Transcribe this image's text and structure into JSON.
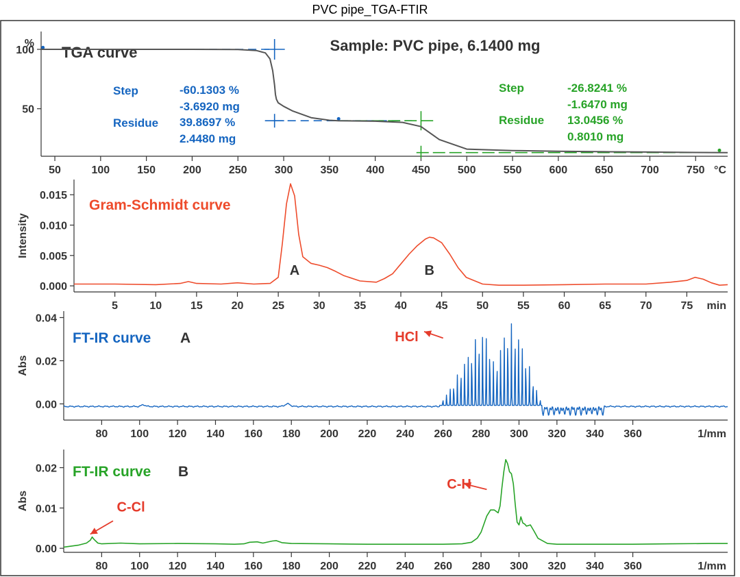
{
  "title": "PVC pipe_TGA-FTIR",
  "colors": {
    "tga": "#555555",
    "blue": "#1565c0",
    "green": "#27a327",
    "red": "#ee4b2b",
    "label": "#e53b2b",
    "text": "#333333"
  },
  "chart_data": [
    {
      "type": "line",
      "panel": "tga",
      "title": "TGA curve",
      "subtitle": "Sample: PVC pipe, 6.1400 mg",
      "ylabel": "%",
      "xunit": "°C",
      "xlim": [
        35,
        785
      ],
      "ylim": [
        10,
        115
      ],
      "xticks": [
        50,
        100,
        150,
        200,
        250,
        300,
        350,
        400,
        450,
        500,
        550,
        600,
        650,
        700,
        750
      ],
      "yticks": [
        50,
        100
      ],
      "series": [
        {
          "x": [
            35,
            100,
            200,
            250,
            270,
            280,
            285,
            288,
            290,
            291,
            292,
            294,
            300,
            310,
            330,
            350,
            360,
            400,
            430,
            450,
            470,
            500,
            550,
            600,
            650,
            700,
            750,
            785
          ],
          "y": [
            100,
            100,
            100,
            99.8,
            99,
            97,
            92,
            82,
            70,
            62,
            58,
            55,
            52,
            48,
            42.5,
            40.3,
            39.9,
            39.5,
            38.5,
            35,
            24,
            16,
            14.8,
            14.2,
            13.8,
            13.5,
            13.2,
            13.0
          ]
        }
      ],
      "steps": [
        {
          "step_label": "Step",
          "step_pct": "-60.1303 %",
          "step_mg": "-3.6920 mg",
          "residue_label": "Residue",
          "residue_pct": "39.8697 %",
          "residue_mg": "2.4480 mg"
        },
        {
          "step_label": "Step",
          "step_pct": "-26.8241 %",
          "step_mg": "-1.6470 mg",
          "residue_label": "Residue",
          "residue_pct": "13.0456 %",
          "residue_mg": "0.8010 mg"
        }
      ]
    },
    {
      "type": "line",
      "panel": "gram-schmidt",
      "title": "Gram-Schmidt curve",
      "ylabel": "Intensity",
      "xunit": "min",
      "xlim": [
        0,
        80
      ],
      "ylim": [
        -0.001,
        0.0175
      ],
      "xticks": [
        5,
        10,
        15,
        20,
        25,
        30,
        35,
        40,
        45,
        50,
        55,
        60,
        65,
        70,
        75
      ],
      "yticks": [
        0.0,
        0.005,
        0.01,
        0.015
      ],
      "ytick_labels": [
        "0.000",
        "0.005",
        "0.010",
        "0.015"
      ],
      "series": [
        {
          "x": [
            0,
            5,
            10,
            13,
            14,
            15,
            18,
            20,
            22,
            24,
            25,
            25.5,
            26,
            26.5,
            27,
            27.5,
            28,
            29,
            30,
            31,
            32,
            33,
            35,
            37,
            38,
            39,
            40,
            41,
            42,
            43,
            43.5,
            44,
            45,
            46,
            47,
            48,
            50,
            52,
            55,
            60,
            65,
            70,
            73,
            75,
            76,
            77,
            78,
            79,
            80
          ],
          "y": [
            0.0003,
            0.0003,
            0.0002,
            0.0004,
            0.0007,
            0.0004,
            0.0003,
            0.0005,
            0.0003,
            0.0004,
            0.0014,
            0.007,
            0.0135,
            0.0168,
            0.0148,
            0.0085,
            0.0048,
            0.0037,
            0.0034,
            0.003,
            0.0024,
            0.0017,
            0.0008,
            0.0006,
            0.0012,
            0.002,
            0.0036,
            0.0052,
            0.0066,
            0.0077,
            0.008,
            0.0079,
            0.0071,
            0.0052,
            0.003,
            0.0014,
            0.0003,
            0.0001,
            0.0001,
            0.0002,
            0.0003,
            0.0003,
            0.0006,
            0.0009,
            0.0014,
            0.0011,
            0.0005,
            0.0001,
            0.0002
          ]
        }
      ],
      "annotations": [
        {
          "text": "A",
          "x": 27
        },
        {
          "text": "B",
          "x": 43.5
        }
      ]
    },
    {
      "type": "line",
      "panel": "ftir-a",
      "title": "FT-IR curve",
      "title_suffix": "A",
      "ylabel": "Abs",
      "xunit": "1/mm",
      "xlim": [
        60,
        410
      ],
      "ylim": [
        -0.0075,
        0.043
      ],
      "xticks": [
        80,
        100,
        120,
        140,
        160,
        180,
        200,
        220,
        240,
        260,
        280,
        300,
        320,
        340,
        360
      ],
      "yticks": [
        0.0,
        0.02,
        0.04
      ],
      "ytick_labels": [
        "0.00",
        "0.02",
        "0.04"
      ],
      "baseline": -0.0012,
      "band_start": 258,
      "band_end": 312,
      "band_pitch": 1.9,
      "envelope": [
        {
          "x": 258,
          "y": 0.001
        },
        {
          "x": 262,
          "y": 0.006
        },
        {
          "x": 266,
          "y": 0.012
        },
        {
          "x": 270,
          "y": 0.019
        },
        {
          "x": 274,
          "y": 0.026
        },
        {
          "x": 277,
          "y": 0.031
        },
        {
          "x": 280,
          "y": 0.035
        },
        {
          "x": 283,
          "y": 0.034
        },
        {
          "x": 285,
          "y": 0.029
        },
        {
          "x": 287,
          "y": 0.018
        },
        {
          "x": 289,
          "y": 0.024
        },
        {
          "x": 292,
          "y": 0.034
        },
        {
          "x": 295,
          "y": 0.039
        },
        {
          "x": 298,
          "y": 0.037
        },
        {
          "x": 301,
          "y": 0.031
        },
        {
          "x": 304,
          "y": 0.023
        },
        {
          "x": 307,
          "y": 0.014
        },
        {
          "x": 310,
          "y": 0.006
        },
        {
          "x": 312,
          "y": 0.001
        }
      ],
      "annotation": {
        "text": "HCl",
        "x": 247,
        "y": 0.0315,
        "arrow_from": [
          260,
          0.0305
        ],
        "arrow_to": [
          250,
          0.0335
        ]
      }
    },
    {
      "type": "line",
      "panel": "ftir-b",
      "title": "FT-IR curve",
      "title_suffix": "B",
      "ylabel": "Abs",
      "xunit": "1/mm",
      "xlim": [
        60,
        410
      ],
      "ylim": [
        -0.001,
        0.0245
      ],
      "xticks": [
        80,
        100,
        120,
        140,
        160,
        180,
        200,
        220,
        240,
        260,
        280,
        300,
        320,
        340,
        360
      ],
      "yticks": [
        0.0,
        0.01,
        0.02
      ],
      "ytick_labels": [
        "0.00",
        "0.01",
        "0.02"
      ],
      "series": [
        {
          "x": [
            60,
            68,
            72,
            74,
            75,
            76,
            78,
            80,
            90,
            100,
            120,
            140,
            150,
            155,
            158,
            162,
            165,
            170,
            172,
            175,
            180,
            200,
            220,
            240,
            260,
            270,
            275,
            278,
            280,
            283,
            285,
            287,
            289,
            290,
            291,
            292,
            293,
            294,
            295,
            296,
            297,
            298,
            299,
            300,
            301,
            302,
            303,
            304,
            306,
            308,
            310,
            315,
            320,
            340,
            360,
            380,
            400,
            410
          ],
          "y": [
            0.0003,
            0.0008,
            0.0013,
            0.002,
            0.0028,
            0.0022,
            0.0013,
            0.0011,
            0.0013,
            0.0011,
            0.0012,
            0.0011,
            0.001,
            0.0011,
            0.0015,
            0.0016,
            0.0013,
            0.0018,
            0.0019,
            0.0014,
            0.0012,
            0.0011,
            0.001,
            0.001,
            0.001,
            0.0011,
            0.0015,
            0.0025,
            0.004,
            0.008,
            0.0095,
            0.0095,
            0.0088,
            0.0105,
            0.015,
            0.019,
            0.022,
            0.021,
            0.019,
            0.0185,
            0.016,
            0.011,
            0.0065,
            0.0058,
            0.0078,
            0.0063,
            0.006,
            0.0055,
            0.0058,
            0.0042,
            0.0025,
            0.0012,
            0.001,
            0.001,
            0.001,
            0.0011,
            0.0012,
            0.0012
          ]
        }
      ],
      "annotations": [
        {
          "text": "C-Cl",
          "x": 88,
          "y": 0.0105,
          "arrow_from": [
            86,
            0.0068
          ],
          "arrow_to": [
            74,
            0.0035
          ]
        },
        {
          "text": "C-H",
          "x": 262,
          "y": 0.0162,
          "arrow_from": [
            283,
            0.0146
          ],
          "arrow_to": [
            271,
            0.016
          ]
        }
      ]
    }
  ]
}
